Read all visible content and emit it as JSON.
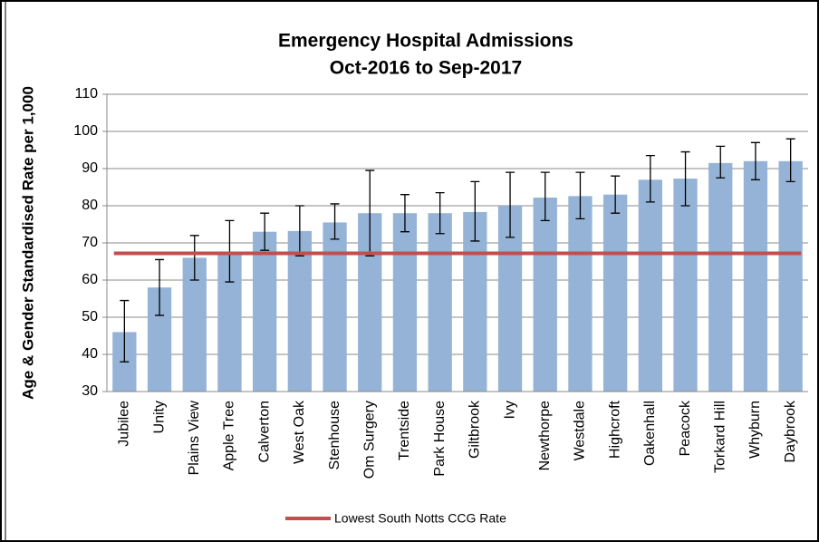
{
  "chart_data": {
    "type": "bar",
    "title": "Emergency Hospital Admissions",
    "subtitle": "Oct-2016 to Sep-2017",
    "y_label": "Age & Gender Standardised  Rate per 1,000",
    "categories": [
      "Jubilee",
      "Unity",
      "Plains View",
      "Apple Tree",
      "Calverton",
      "West Oak",
      "Stenhouse",
      "Om Surgery",
      "Trentside",
      "Park House",
      "Giltbrook",
      "Ivy",
      "Newthorpe",
      "Westdale",
      "Highcroft",
      "Oakenhall",
      "Peacock",
      "Torkard Hill",
      "Whyburn",
      "Daybrook"
    ],
    "series": [
      {
        "color": "#95b3d7",
        "values": [
          46,
          58,
          66,
          67,
          73,
          73.2,
          75.5,
          78,
          78,
          78,
          78.3,
          80,
          82.2,
          82.6,
          83,
          87,
          87.3,
          91.5,
          92,
          92
        ],
        "ci_lower": [
          38,
          50.5,
          60,
          59.5,
          68,
          66.5,
          71,
          66.5,
          73,
          72.5,
          70.5,
          71.5,
          76,
          76.5,
          78,
          81,
          80,
          87.5,
          87,
          86.5
        ],
        "ci_upper": [
          54.5,
          65.5,
          72,
          76,
          78,
          80,
          80.5,
          89.5,
          83,
          83.5,
          86.5,
          89,
          89,
          89,
          88,
          93.5,
          94.5,
          96,
          97,
          98
        ]
      }
    ],
    "reference_line": {
      "name": "Lowest South Notts CCG Rate",
      "value": 67.2,
      "color": "#c0504d"
    },
    "ylim": [
      30,
      110
    ],
    "yticks": [
      30,
      40,
      50,
      60,
      70,
      80,
      90,
      100,
      110
    ],
    "grid": true
  }
}
